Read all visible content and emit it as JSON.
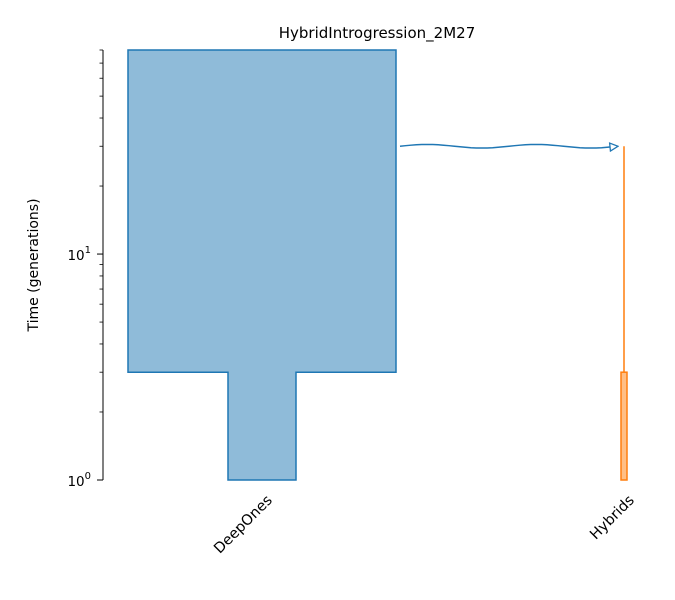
{
  "chart_data": {
    "type": "demography",
    "title": "HybridIntrogression_2M27",
    "ylabel": "Time (generations)",
    "yscale": "log",
    "ylim": [
      1,
      80
    ],
    "y_ticks": [
      {
        "value": 1,
        "base": "10",
        "exp": "0"
      },
      {
        "value": 10,
        "base": "10",
        "exp": "1"
      }
    ],
    "demes": [
      {
        "name": "DeepOnes",
        "color": "#1f77b4",
        "epochs": [
          {
            "start_time": 80,
            "end_time": 3,
            "size": "large"
          },
          {
            "start_time": 3,
            "end_time": 1,
            "size": "small"
          }
        ]
      },
      {
        "name": "Hybrids",
        "color": "#ff7f0e",
        "start_time": 30,
        "epochs": [
          {
            "start_time": 30,
            "end_time": 3,
            "size": "tiny"
          },
          {
            "start_time": 3,
            "end_time": 1,
            "size": "small"
          }
        ]
      }
    ],
    "pulses": [
      {
        "source": "DeepOnes",
        "dest": "Hybrids",
        "time": 30
      }
    ]
  }
}
